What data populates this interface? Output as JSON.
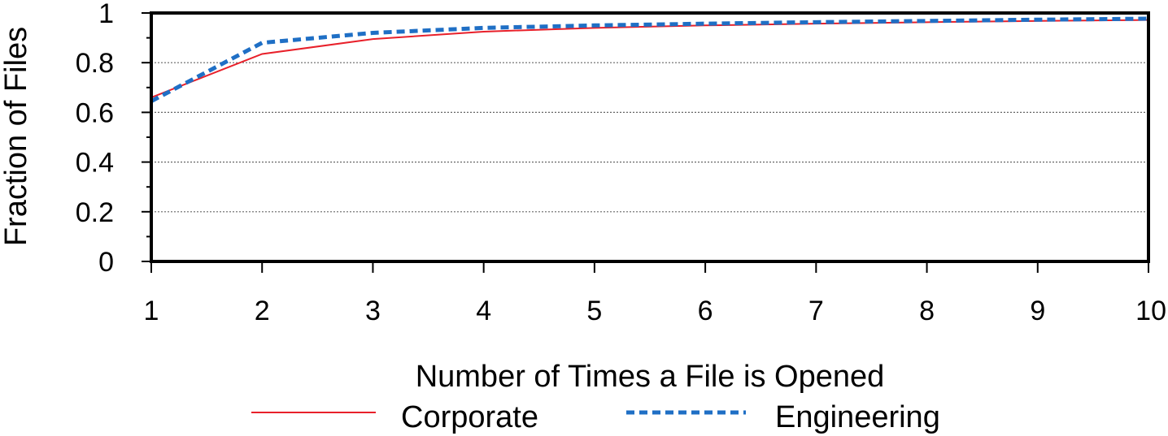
{
  "chart_data": {
    "type": "line",
    "title": "",
    "xlabel": "Number of Times a File is Opened",
    "ylabel": "Fraction of Files",
    "xlim": [
      1,
      10
    ],
    "ylim": [
      0,
      1
    ],
    "x_ticks": [
      1,
      2,
      3,
      4,
      5,
      6,
      7,
      8,
      9,
      10
    ],
    "y_ticks": [
      0,
      0.2,
      0.4,
      0.6,
      0.8,
      1
    ],
    "x_tick_labels": [
      "1",
      "2",
      "3",
      "4",
      "5",
      "6",
      "7",
      "8",
      "9",
      "10"
    ],
    "y_tick_labels": [
      "0",
      "0.2",
      "0.4",
      "0.6",
      "0.8",
      "1"
    ],
    "grid": "horizontal dotted",
    "legend_position": "bottom",
    "x": [
      1,
      2,
      3,
      4,
      5,
      6,
      7,
      8,
      9,
      10
    ],
    "series": [
      {
        "name": "Corporate",
        "color": "#e8202a",
        "style": "solid",
        "values": [
          0.66,
          0.835,
          0.895,
          0.925,
          0.94,
          0.95,
          0.957,
          0.963,
          0.968,
          0.972
        ]
      },
      {
        "name": "Engineering",
        "color": "#1f6fc5",
        "style": "dashed",
        "values": [
          0.645,
          0.88,
          0.92,
          0.94,
          0.95,
          0.957,
          0.963,
          0.968,
          0.973,
          0.977
        ]
      }
    ]
  }
}
